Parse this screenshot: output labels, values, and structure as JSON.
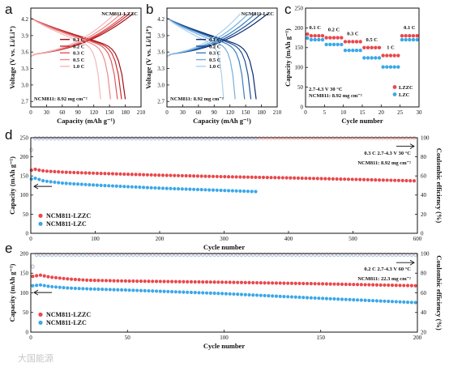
{
  "watermark": "大国能源",
  "colors": {
    "red": "#e8484c",
    "blue": "#3ba8e8",
    "redFaint": "#f3a3a5",
    "blueFaint": "#9bd3f3"
  },
  "chart_data": [
    {
      "id": "a",
      "panel_label": "a",
      "type": "line",
      "inset_title": "NCM811-LZZC",
      "xlabel": "Capacity (mAh g⁻¹)",
      "ylabel": "Voltage (V vs. Li/Li⁺)",
      "xlim": [
        0,
        210
      ],
      "ylim": [
        2.6,
        4.4
      ],
      "xticks": [
        "0",
        "30",
        "60",
        "90",
        "120",
        "150",
        "180",
        "210"
      ],
      "yticks": [
        "2.7",
        "3.0",
        "3.3",
        "3.6",
        "3.9",
        "4.2"
      ],
      "annotation": "NCM811: 8.92 mg cm⁻²",
      "legend": [
        "0.1 C",
        "0.2 C",
        "0.3 C",
        "0.5 C",
        "1.0 C"
      ],
      "series": [
        {
          "name": "0.1 C",
          "charge_capacity": 195,
          "discharge_capacity": 180
        },
        {
          "name": "0.2 C",
          "charge_capacity": 188,
          "discharge_capacity": 173
        },
        {
          "name": "0.3 C",
          "charge_capacity": 182,
          "discharge_capacity": 165
        },
        {
          "name": "0.5 C",
          "charge_capacity": 172,
          "discharge_capacity": 152
        },
        {
          "name": "1.0 C",
          "charge_capacity": 160,
          "discharge_capacity": 133
        }
      ]
    },
    {
      "id": "b",
      "panel_label": "b",
      "type": "line",
      "inset_title": "NCM811-LZC",
      "xlabel": "Capacity (mAh g⁻¹)",
      "ylabel": "Voltage (V vs. Li/Li⁺)",
      "xlim": [
        0,
        210
      ],
      "ylim": [
        2.6,
        4.4
      ],
      "xticks": [
        "0",
        "30",
        "60",
        "90",
        "120",
        "150",
        "180",
        "210"
      ],
      "yticks": [
        "2.7",
        "3.0",
        "3.3",
        "3.6",
        "3.9",
        "4.2"
      ],
      "annotation": "NCM811: 8.92 mg cm⁻²",
      "legend": [
        "0.1 C",
        "0.2 C",
        "0.3 C",
        "0.5 C",
        "1.0 C"
      ],
      "series": [
        {
          "name": "0.1 C",
          "charge_capacity": 192,
          "discharge_capacity": 170
        },
        {
          "name": "0.2 C",
          "charge_capacity": 180,
          "discharge_capacity": 160
        },
        {
          "name": "0.3 C",
          "charge_capacity": 168,
          "discharge_capacity": 148
        },
        {
          "name": "0.5 C",
          "charge_capacity": 155,
          "discharge_capacity": 130
        },
        {
          "name": "1.0 C",
          "charge_capacity": 140,
          "discharge_capacity": 108
        }
      ]
    },
    {
      "id": "c",
      "panel_label": "c",
      "type": "scatter",
      "xlabel": "Cycle number",
      "ylabel": "Capacity (mAh g⁻¹)",
      "xlim": [
        0,
        30
      ],
      "ylim": [
        0,
        250
      ],
      "xticks": [
        "0",
        "5",
        "10",
        "15",
        "20",
        "25",
        "30"
      ],
      "yticks": [
        "0",
        "50",
        "100",
        "150",
        "200",
        "250"
      ],
      "annotation": [
        "2.7-4.3 V 30 °C",
        "NCM811: 8.92 mg cm⁻²"
      ],
      "rate_labels": [
        "0.1 C",
        "0.2 C",
        "0.3 C",
        "0.5 C",
        "1 C",
        "0.1 C"
      ],
      "legend": [
        "LZZC",
        "LZC"
      ],
      "series": [
        {
          "name": "LZZC",
          "segment_values": [
            180,
            175,
            165,
            150,
            130,
            180
          ]
        },
        {
          "name": "LZC",
          "segment_values": [
            170,
            158,
            143,
            124,
            101,
            170
          ]
        }
      ]
    },
    {
      "id": "d",
      "panel_label": "d",
      "type": "scatter",
      "xlabel": "Cycle number",
      "ylabel": "Capacity (mAh g⁻¹)",
      "y2label": "Coulombic efficiency (%)",
      "xlim": [
        0,
        600
      ],
      "ylim": [
        0,
        250
      ],
      "y2lim": [
        0,
        100
      ],
      "xticks": [
        "0",
        "100",
        "200",
        "300",
        "400",
        "500",
        "600"
      ],
      "yticks": [
        "0",
        "50",
        "100",
        "150",
        "200",
        "250"
      ],
      "y2ticks": [
        "0",
        "20",
        "40",
        "60",
        "80",
        "100"
      ],
      "annotation": [
        "0.3 C 2.7-4.3 V 30 °C",
        "NCM811: 8.92 mg cm⁻²"
      ],
      "legend": [
        "NCM811-LZZC",
        "NCM811-LZC"
      ],
      "series": [
        {
          "name": "NCM811-LZZC",
          "capacity": {
            "x": [
              1,
              5,
              20,
              50,
              100,
              200,
              300,
              400,
              500,
              600
            ],
            "y": [
              165,
              168,
              163,
              160,
              157,
              152,
              148,
              145,
              141,
              137
            ]
          },
          "coulombic_efficiency": 99.5,
          "last_cycle": 600
        },
        {
          "name": "NCM811-LZC",
          "capacity": {
            "x": [
              1,
              5,
              20,
              50,
              100,
              150,
              200,
              250,
              300,
              350
            ],
            "y": [
              142,
              145,
              137,
              131,
              126,
              122,
              118,
              115,
              112,
              109
            ]
          },
          "coulombic_efficiency": 99.0,
          "last_cycle": 350
        }
      ]
    },
    {
      "id": "e",
      "panel_label": "e",
      "type": "scatter",
      "xlabel": "Cycle number",
      "ylabel": "Capacity (mAh g⁻¹)",
      "y2label": "Coulombic efficiency (%)",
      "xlim": [
        0,
        200
      ],
      "ylim": [
        0,
        200
      ],
      "y2lim": [
        20,
        100
      ],
      "xticks": [
        "0",
        "50",
        "100",
        "150",
        "200"
      ],
      "yticks": [
        "0",
        "50",
        "100",
        "150",
        "200"
      ],
      "y2ticks": [
        "20",
        "40",
        "60",
        "80",
        "100"
      ],
      "annotation": [
        "0.2 C 2.7-4.3 V 60 °C",
        "NCM811: 22.3 mg cm⁻²"
      ],
      "legend": [
        "NCM811-LZZC",
        "NCM811-LZC"
      ],
      "series": [
        {
          "name": "NCM811-LZZC",
          "capacity": {
            "x": [
              1,
              5,
              10,
              20,
              30,
              50,
              100,
              150,
              200
            ],
            "y": [
              142,
              145,
              140,
              135,
              132,
              130,
              127,
              123,
              118
            ]
          },
          "coulombic_efficiency": 99.0,
          "last_cycle": 200
        },
        {
          "name": "NCM811-LZC",
          "capacity": {
            "x": [
              1,
              5,
              10,
              20,
              30,
              50,
              100,
              150,
              200
            ],
            "y": [
              118,
              120,
              116,
              112,
              110,
              107,
              98,
              86,
              75
            ]
          },
          "coulombic_efficiency": 98.5,
          "last_cycle": 200
        }
      ]
    }
  ]
}
